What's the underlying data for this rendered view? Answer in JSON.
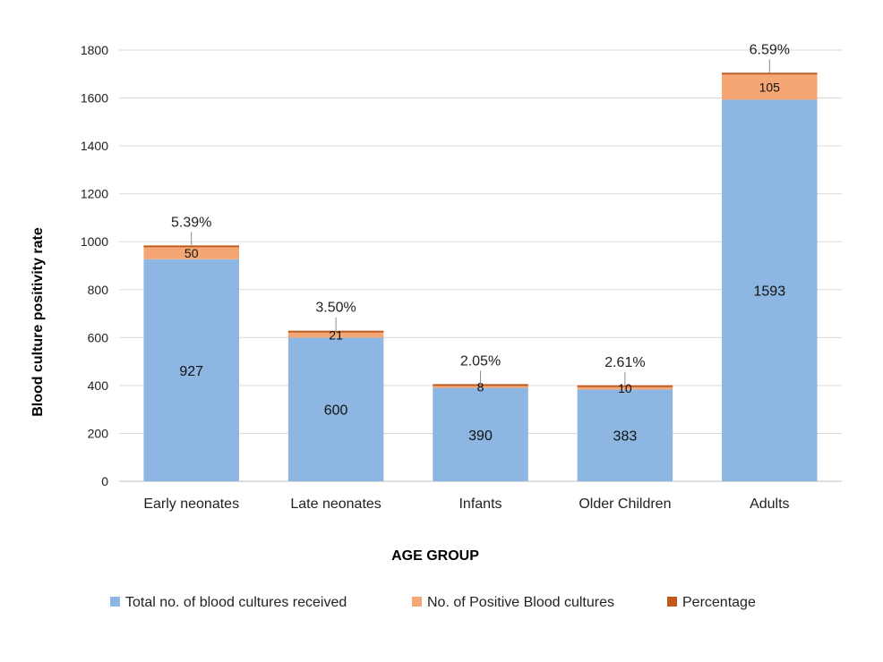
{
  "chart_data": {
    "type": "bar",
    "stacked": true,
    "title": "",
    "xlabel": "AGE GROUP",
    "ylabel": "Blood culture positivity rate",
    "ylim": [
      0,
      1800
    ],
    "yticks": [
      0,
      200,
      400,
      600,
      800,
      1000,
      1200,
      1400,
      1600,
      1800
    ],
    "grid": true,
    "legend": "bottom",
    "categories": [
      "Early neonates",
      "Late neonates",
      "Infants",
      "Older Children",
      "Adults"
    ],
    "series": [
      {
        "name": "Total no. of blood cultures received",
        "values": [
          927,
          600,
          390,
          383,
          1593
        ],
        "color": "#8db7e2"
      },
      {
        "name": "No. of Positive Blood cultures",
        "values": [
          50,
          21,
          8,
          10,
          105
        ],
        "color": "#f4a774"
      },
      {
        "name": "Percentage",
        "values": [
          5.39,
          3.5,
          2.05,
          2.61,
          6.59
        ],
        "color": "#c0581c"
      }
    ],
    "percentage_labels": [
      "5.39%",
      "3.50%",
      "2.05%",
      "2.61%",
      "6.59%"
    ]
  }
}
